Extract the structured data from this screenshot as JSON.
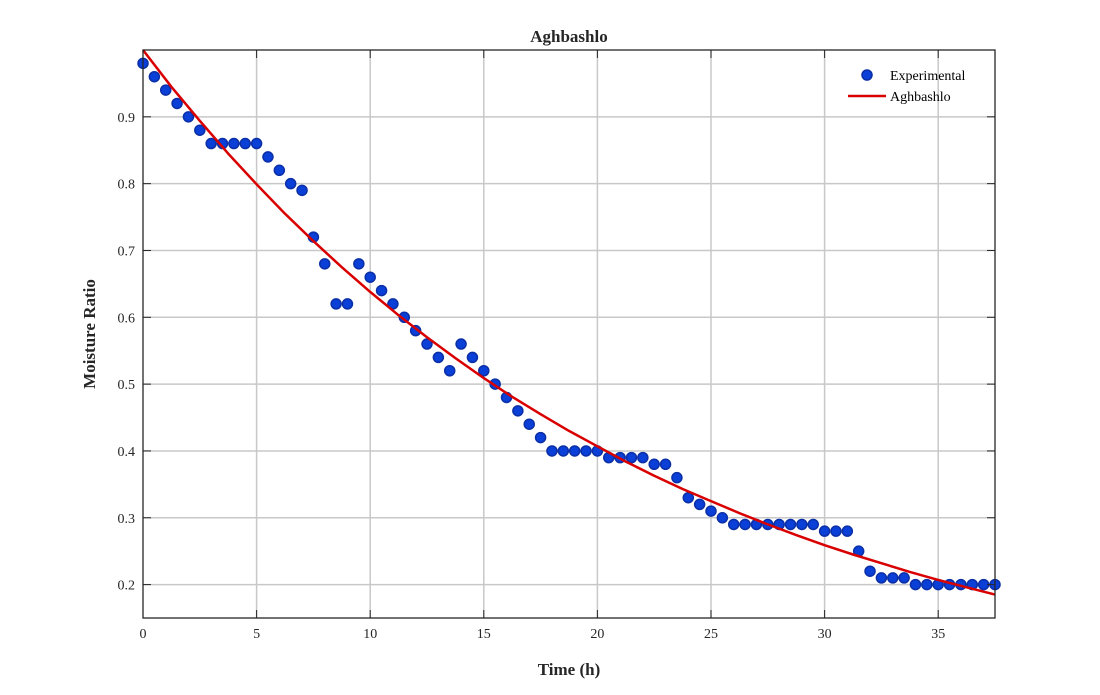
{
  "chart_data": {
    "type": "scatter",
    "title": "Aghbashlo",
    "xlabel": "Time (h)",
    "ylabel": "Moisture Ratio",
    "xlim": [
      0,
      37.5
    ],
    "ylim": [
      0.15,
      1.0
    ],
    "xticks": [
      0,
      5,
      10,
      15,
      20,
      25,
      30,
      35
    ],
    "yticks": [
      0.2,
      0.3,
      0.4,
      0.5,
      0.6,
      0.7,
      0.8,
      0.9
    ],
    "xtick_labels": [
      "0",
      "5",
      "10",
      "15",
      "20",
      "25",
      "30",
      "35"
    ],
    "ytick_labels": [
      "0.2",
      "0.3",
      "0.4",
      "0.5",
      "0.6",
      "0.7",
      "0.8",
      "0.9"
    ],
    "grid": true,
    "legend_position": "top-right",
    "legend": [
      "Experimental",
      "Aghbashlo"
    ],
    "colors": {
      "experimental": "#0a3fd8",
      "experimental_edge": "#0b2fa6",
      "model": "#d90000"
    },
    "series": [
      {
        "name": "Experimental",
        "type": "scatter",
        "x": [
          0,
          0.5,
          1,
          1.5,
          2,
          2.5,
          3,
          3.5,
          4,
          4.5,
          5,
          5.5,
          6,
          6.5,
          7,
          7.5,
          8,
          8.5,
          9,
          9.5,
          10,
          10.5,
          11,
          11.5,
          12,
          12.5,
          13,
          13.5,
          14,
          14.5,
          15,
          15.5,
          16,
          16.5,
          17,
          17.5,
          18,
          18.5,
          19,
          19.5,
          20,
          20.5,
          21,
          21.5,
          22,
          22.5,
          23,
          23.5,
          24,
          24.5,
          25,
          25.5,
          26,
          26.5,
          27,
          27.5,
          28,
          28.5,
          29,
          29.5,
          30,
          30.5,
          31,
          31.5,
          32,
          32.5,
          33,
          33.5,
          34,
          34.5,
          35,
          35.5,
          36,
          36.5,
          37,
          37.5
        ],
        "y": [
          0.98,
          0.96,
          0.94,
          0.92,
          0.9,
          0.88,
          0.86,
          0.86,
          0.86,
          0.86,
          0.86,
          0.84,
          0.82,
          0.8,
          0.79,
          0.72,
          0.68,
          0.62,
          0.62,
          0.68,
          0.66,
          0.64,
          0.62,
          0.6,
          0.58,
          0.56,
          0.54,
          0.52,
          0.56,
          0.54,
          0.52,
          0.5,
          0.48,
          0.46,
          0.44,
          0.42,
          0.4,
          0.4,
          0.4,
          0.4,
          0.4,
          0.39,
          0.39,
          0.39,
          0.39,
          0.38,
          0.38,
          0.36,
          0.33,
          0.32,
          0.31,
          0.3,
          0.29,
          0.29,
          0.29,
          0.29,
          0.29,
          0.29,
          0.29,
          0.29,
          0.28,
          0.28,
          0.28,
          0.25,
          0.22,
          0.21,
          0.21,
          0.21,
          0.2,
          0.2,
          0.2,
          0.2,
          0.2,
          0.2,
          0.2,
          0.2
        ]
      },
      {
        "name": "Aghbashlo",
        "type": "line",
        "x": [
          0,
          1.25,
          2.5,
          3.75,
          5,
          6.25,
          7.5,
          8.75,
          10,
          11.25,
          12.5,
          13.75,
          15,
          16.25,
          17.5,
          18.75,
          20,
          21.25,
          22.5,
          23.75,
          25,
          26.25,
          27.5,
          28.75,
          30,
          31.25,
          32.5,
          33.75,
          35,
          36.25,
          37.5
        ],
        "y": [
          1.0,
          0.945,
          0.894,
          0.845,
          0.799,
          0.755,
          0.714,
          0.675,
          0.638,
          0.603,
          0.57,
          0.539,
          0.509,
          0.481,
          0.455,
          0.43,
          0.407,
          0.384,
          0.363,
          0.343,
          0.325,
          0.307,
          0.29,
          0.274,
          0.259,
          0.245,
          0.232,
          0.219,
          0.207,
          0.196,
          0.185
        ]
      }
    ]
  }
}
